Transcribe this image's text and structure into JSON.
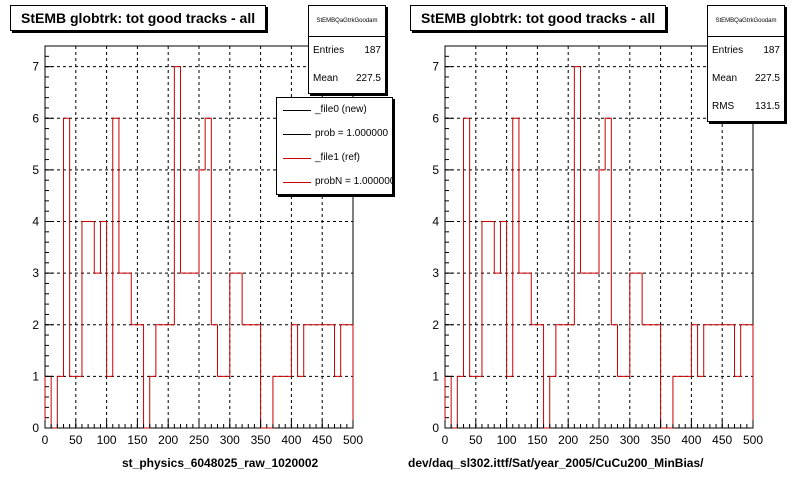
{
  "colors": {
    "ref": "#cc0000",
    "new": "#000000",
    "grid": "#000000",
    "background": "#ffffff"
  },
  "panels": [
    {
      "title": "StEMB globtrk: tot good tracks - all",
      "stats": {
        "name": "StEMBQaGtrkGoodam",
        "rows": [
          {
            "label": "Entries",
            "value": "187"
          },
          {
            "label": "Mean",
            "value": "227.5"
          }
        ]
      },
      "legend": [
        {
          "label": "_file0 (new)",
          "color": "#000000"
        },
        {
          "label": "prob = 1.000000",
          "color": "#000000"
        },
        {
          "label": "_file1 (ref)",
          "color": "#cc0000"
        },
        {
          "label": "probN = 1.000000",
          "color": "#cc0000"
        }
      ],
      "xcaption": "st_physics_6048025_raw_1020002"
    },
    {
      "title": "StEMB globtrk: tot good tracks - all",
      "stats": {
        "name": "StEMBQaGtrkGoodam",
        "rows": [
          {
            "label": "Entries",
            "value": "187"
          },
          {
            "label": "Mean",
            "value": "227.5"
          },
          {
            "label": "RMS",
            "value": "131.5"
          }
        ]
      },
      "legend": [],
      "xcaption": "dev/daq_sl302.ittf/Sat/year_2005/CuCu200_MinBias/"
    }
  ],
  "chart_data": [
    {
      "type": "line",
      "title": "StEMB globtrk: tot good tracks - all",
      "xlabel": "st_physics_6048025_raw_1020002",
      "ylabel": "",
      "xlim": [
        0,
        500
      ],
      "ylim": [
        0,
        7.4
      ],
      "xticks": [
        0,
        50,
        100,
        150,
        200,
        250,
        300,
        350,
        400,
        450,
        500
      ],
      "yticks": [
        0,
        1,
        2,
        3,
        4,
        5,
        6,
        7
      ],
      "grid": true,
      "bin_width": 10,
      "series": [
        {
          "name": "_file1 (ref)",
          "color": "#cc0000",
          "bin_edges": [
            0,
            10,
            20,
            30,
            40,
            50,
            60,
            70,
            80,
            90,
            100,
            110,
            120,
            130,
            140,
            150,
            160,
            170,
            180,
            190,
            200,
            210,
            220,
            230,
            240,
            250,
            260,
            270,
            280,
            290,
            300,
            310,
            320,
            330,
            340,
            350,
            360,
            370,
            380,
            390,
            400,
            410,
            420,
            430,
            440,
            450,
            460,
            470,
            480,
            490,
            500
          ],
          "values": [
            1,
            0,
            1,
            6,
            1,
            1,
            4,
            4,
            3,
            4,
            1,
            6,
            3,
            3,
            2,
            2,
            0,
            1,
            2,
            2,
            2,
            7,
            3,
            3,
            3,
            5,
            6,
            2,
            1,
            1,
            3,
            3,
            2,
            2,
            2,
            0,
            0,
            1,
            1,
            1,
            2,
            1,
            2,
            2,
            2,
            2,
            2,
            1,
            2,
            2
          ]
        }
      ]
    },
    {
      "type": "line",
      "title": "StEMB globtrk: tot good tracks - all",
      "xlabel": "dev/daq_sl302.ittf/Sat/year_2005/CuCu200_MinBias/",
      "ylabel": "",
      "xlim": [
        0,
        500
      ],
      "ylim": [
        0,
        7.4
      ],
      "xticks": [
        0,
        50,
        100,
        150,
        200,
        250,
        300,
        350,
        400,
        450,
        500
      ],
      "yticks": [
        0,
        1,
        2,
        3,
        4,
        5,
        6,
        7
      ],
      "grid": true,
      "bin_width": 10,
      "series": [
        {
          "name": "",
          "color": "#cc0000",
          "bin_edges": [
            0,
            10,
            20,
            30,
            40,
            50,
            60,
            70,
            80,
            90,
            100,
            110,
            120,
            130,
            140,
            150,
            160,
            170,
            180,
            190,
            200,
            210,
            220,
            230,
            240,
            250,
            260,
            270,
            280,
            290,
            300,
            310,
            320,
            330,
            340,
            350,
            360,
            370,
            380,
            390,
            400,
            410,
            420,
            430,
            440,
            450,
            460,
            470,
            480,
            490,
            500
          ],
          "values": [
            1,
            0,
            1,
            6,
            1,
            1,
            4,
            4,
            3,
            4,
            1,
            6,
            3,
            3,
            2,
            2,
            0,
            1,
            2,
            2,
            2,
            7,
            3,
            3,
            3,
            5,
            6,
            2,
            1,
            1,
            3,
            3,
            2,
            2,
            2,
            0,
            0,
            1,
            1,
            1,
            2,
            1,
            2,
            2,
            2,
            2,
            2,
            1,
            2,
            2
          ]
        }
      ]
    }
  ]
}
